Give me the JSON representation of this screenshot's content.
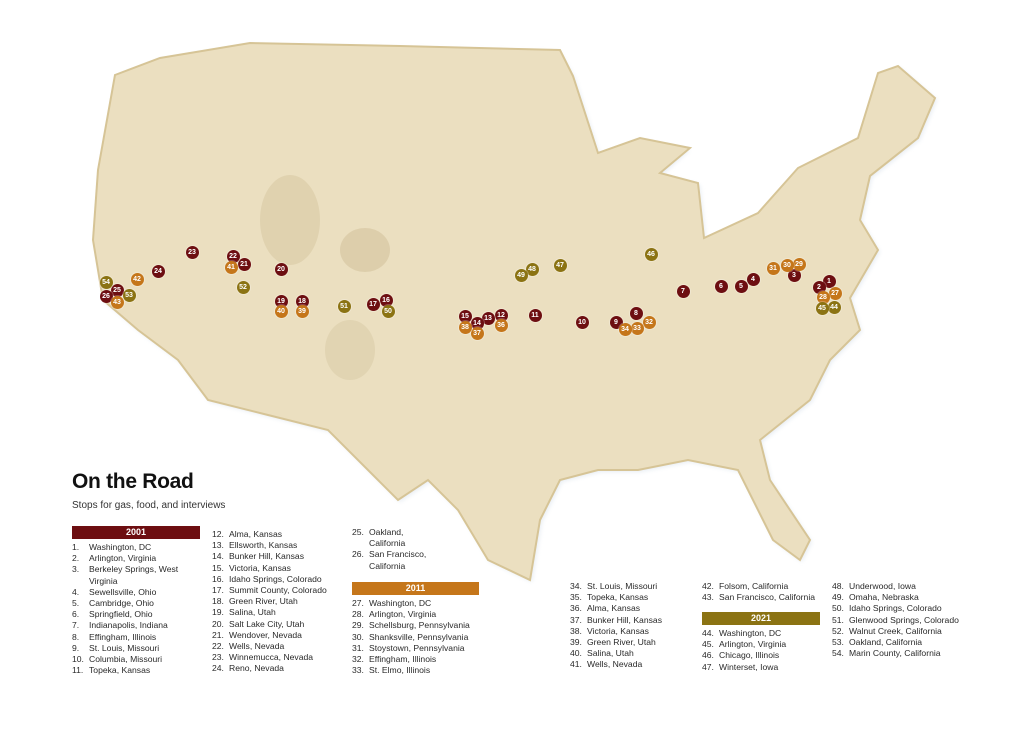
{
  "title": "On the Road",
  "subtitle": "Stops for gas, food, and interviews",
  "colors": {
    "2001": "#6d0e11",
    "2011": "#c5761a",
    "2021": "#8b7313",
    "land": "#ebdfc0",
    "land_edge": "#d9c79c"
  },
  "groups": [
    {
      "year": "2001",
      "items": [
        {
          "num": "1.",
          "label": "Washington, DC"
        },
        {
          "num": "2.",
          "label": "Arlington, Virginia"
        },
        {
          "num": "3.",
          "label": "Berkeley Springs, West Virginia"
        },
        {
          "num": "4.",
          "label": "Sewellsville, Ohio"
        },
        {
          "num": "5.",
          "label": "Cambridge, Ohio"
        },
        {
          "num": "6.",
          "label": "Springfield, Ohio"
        },
        {
          "num": "7.",
          "label": "Indianapolis, Indiana"
        },
        {
          "num": "8.",
          "label": "Effingham, Illinois"
        },
        {
          "num": "9.",
          "label": "St. Louis, Missouri"
        },
        {
          "num": "10.",
          "label": "Columbia, Missouri"
        },
        {
          "num": "11.",
          "label": "Topeka, Kansas"
        },
        {
          "num": "12.",
          "label": "Alma, Kansas"
        },
        {
          "num": "13.",
          "label": "Ellsworth, Kansas"
        },
        {
          "num": "14.",
          "label": "Bunker Hill, Kansas"
        },
        {
          "num": "15.",
          "label": "Victoria, Kansas"
        },
        {
          "num": "16.",
          "label": "Idaho Springs, Colorado"
        },
        {
          "num": "17.",
          "label": "Summit County, Colorado"
        },
        {
          "num": "18.",
          "label": "Green River, Utah"
        },
        {
          "num": "19.",
          "label": "Salina, Utah"
        },
        {
          "num": "20.",
          "label": "Salt Lake City, Utah"
        },
        {
          "num": "21.",
          "label": "Wendover, Nevada"
        },
        {
          "num": "22.",
          "label": "Wells, Nevada"
        },
        {
          "num": "23.",
          "label": "Winnemucca, Nevada"
        },
        {
          "num": "24.",
          "label": "Reno, Nevada"
        },
        {
          "num": "25.",
          "label": "Oakland, California"
        },
        {
          "num": "26.",
          "label": "San Francisco, California"
        }
      ]
    },
    {
      "year": "2011",
      "items": [
        {
          "num": "27.",
          "label": "Washington, DC"
        },
        {
          "num": "28.",
          "label": "Arlington, Virginia"
        },
        {
          "num": "29.",
          "label": "Schellsburg, Pennsylvania"
        },
        {
          "num": "30.",
          "label": "Shanksville, Pennsylvania"
        },
        {
          "num": "31.",
          "label": "Stoystown, Pennsylvania"
        },
        {
          "num": "32.",
          "label": "Effingham, Illinois"
        },
        {
          "num": "33.",
          "label": "St. Elmo, Illinois"
        },
        {
          "num": "34.",
          "label": "St. Louis, Missouri"
        },
        {
          "num": "35.",
          "label": "Topeka, Kansas"
        },
        {
          "num": "36.",
          "label": "Alma, Kansas"
        },
        {
          "num": "37.",
          "label": "Bunker Hill, Kansas"
        },
        {
          "num": "38.",
          "label": "Victoria, Kansas"
        },
        {
          "num": "39.",
          "label": "Green River, Utah"
        },
        {
          "num": "40.",
          "label": "Salina, Utah"
        },
        {
          "num": "41.",
          "label": "Wells, Nevada"
        },
        {
          "num": "42.",
          "label": "Folsom, California"
        },
        {
          "num": "43.",
          "label": "San Francisco, California"
        }
      ]
    },
    {
      "year": "2021",
      "items": [
        {
          "num": "44.",
          "label": "Washington, DC"
        },
        {
          "num": "45.",
          "label": "Arlington, Virginia"
        },
        {
          "num": "46.",
          "label": "Chicago, Illinois"
        },
        {
          "num": "47.",
          "label": "Winterset, Iowa"
        },
        {
          "num": "48.",
          "label": "Underwood, Iowa"
        },
        {
          "num": "49.",
          "label": "Omaha, Nebraska"
        },
        {
          "num": "50.",
          "label": "Idaho Springs, Colorado"
        },
        {
          "num": "51.",
          "label": "Glenwood Springs, Colorado"
        },
        {
          "num": "52.",
          "label": "Walnut Creek, California"
        },
        {
          "num": "53.",
          "label": "Oakland, California"
        },
        {
          "num": "54.",
          "label": "Marin County, California"
        }
      ]
    }
  ]
}
